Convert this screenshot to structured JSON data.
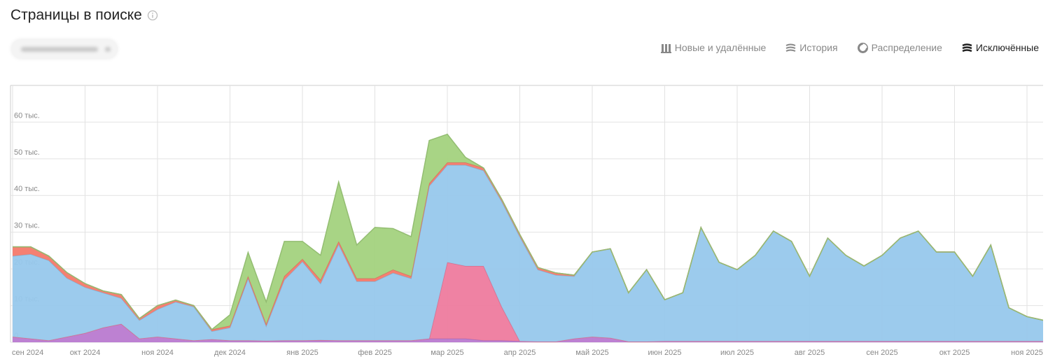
{
  "header": {
    "title": "Страницы в поиске"
  },
  "tabs": [
    "Новые и удалённые",
    "История",
    "Распределение",
    "Исключённые"
  ],
  "chart_data": {
    "type": "stacked-area",
    "categories": [
      "сен 2024",
      null,
      null,
      null,
      "окт 2024",
      null,
      null,
      null,
      "ноя 2024",
      null,
      null,
      null,
      "дек 2024",
      null,
      null,
      null,
      "янв 2025",
      null,
      null,
      null,
      "фев 2025",
      null,
      null,
      null,
      "мар 2025",
      null,
      null,
      null,
      "апр 2025",
      null,
      null,
      null,
      "май 2025",
      null,
      null,
      null,
      "июн 2025",
      null,
      null,
      null,
      "июл 2025",
      null,
      null,
      null,
      "авг 2025",
      null,
      null,
      null,
      "сен 2025",
      null,
      null,
      null,
      "окт 2025",
      null,
      null,
      null,
      "ноя 2025",
      null
    ],
    "ylim": [
      0,
      70
    ],
    "yticks": [
      0,
      {
        "value": 10,
        "label": "10 тыс."
      },
      {
        "value": 20,
        "label": "20 тыс."
      },
      {
        "value": 30,
        "label": "30 тыс."
      },
      {
        "value": 40,
        "label": "40 тыс."
      },
      {
        "value": 50,
        "label": "50 тыс."
      },
      {
        "value": 60,
        "label": "60 тыс."
      }
    ],
    "grid": true,
    "series": [
      {
        "color": "#b97ad0",
        "values": [
          1.5,
          1,
          0.5,
          1.5,
          2.5,
          4,
          5,
          1,
          1.5,
          1,
          0.5,
          0.8,
          0.5,
          0.5,
          0.4,
          0.5,
          0.5,
          0.6,
          0.5,
          0.5,
          0.5,
          0.5,
          0.5,
          1,
          1,
          1,
          0.5,
          0.5,
          0.3,
          0.2,
          0.2,
          1,
          1.5,
          1.2,
          0.2,
          0.2,
          0.3,
          0.3,
          0.3,
          0.3,
          0.3,
          0.3,
          0.3,
          0.3,
          0.3,
          0.3,
          0.3,
          0.3,
          0.3,
          0.3,
          0.3,
          0.3,
          0.3,
          0.3,
          0.3,
          0.3,
          0.3,
          0.3
        ]
      },
      {
        "color": "#ee7b9e",
        "values": [
          0,
          0,
          0,
          0,
          0,
          0,
          0,
          0,
          0,
          0,
          0,
          0,
          0,
          0,
          0,
          0,
          0,
          0,
          0,
          0,
          0,
          0,
          0,
          0,
          20.8,
          19.8,
          20.3,
          9.2,
          0,
          0,
          0,
          0,
          0,
          0,
          0,
          0,
          0,
          0,
          0,
          0,
          0,
          0,
          0,
          0,
          0,
          0,
          0,
          0,
          0,
          0,
          0,
          0,
          0,
          0,
          0,
          0,
          0,
          0
        ]
      },
      {
        "color": "#97c8ec",
        "values": [
          22,
          23,
          21.8,
          16,
          12.5,
          9.5,
          7,
          5,
          7.5,
          10,
          9.2,
          2.2,
          3.5,
          16.9,
          4,
          16.5,
          21.5,
          15.4,
          26.2,
          16.1,
          16.1,
          18.4,
          16.9,
          41.6,
          26.5,
          27.5,
          26,
          28.7,
          28.5,
          19.6,
          18.1,
          17,
          23.1,
          24.3,
          13.3,
          19.6,
          11.3,
          13.2,
          31,
          21.5,
          19.5,
          23.4,
          30,
          27.2,
          17.7,
          28.1,
          23.4,
          20.5,
          23.4,
          28.1,
          30,
          24.3,
          24.3,
          17.7,
          26.2,
          9.1,
          6.7,
          5.6
        ]
      },
      {
        "color": "#f4796a",
        "values": [
          2.5,
          2,
          1.2,
          1.5,
          1,
          0.5,
          1,
          0.5,
          1,
          0.5,
          0.3,
          0.5,
          0.5,
          0.6,
          0.6,
          1,
          0.7,
          1,
          0.8,
          0.8,
          0.8,
          0.9,
          0.6,
          0.7,
          0.7,
          0.7,
          0.7,
          0.6,
          0.6,
          0.6,
          0.6,
          0.3,
          0,
          0,
          0,
          0,
          0,
          0,
          0,
          0,
          0,
          0,
          0,
          0,
          0,
          0,
          0,
          0,
          0,
          0,
          0,
          0,
          0,
          0,
          0,
          0,
          0,
          0
        ]
      },
      {
        "color": "#a3d27e",
        "values": [
          0,
          0,
          0,
          0,
          0,
          0,
          0,
          0,
          0,
          0,
          0,
          0,
          3,
          6.5,
          6,
          9.5,
          4.8,
          6.7,
          16.2,
          9.1,
          13.9,
          11.2,
          10.8,
          11.7,
          7.7,
          1.4,
          0,
          0,
          0,
          0,
          0,
          0,
          0,
          0,
          0,
          0,
          0,
          0,
          0,
          0,
          0,
          0,
          0,
          0,
          0,
          0,
          0,
          0,
          0,
          0,
          0,
          0,
          0,
          0,
          0,
          0,
          0,
          0
        ]
      }
    ]
  }
}
